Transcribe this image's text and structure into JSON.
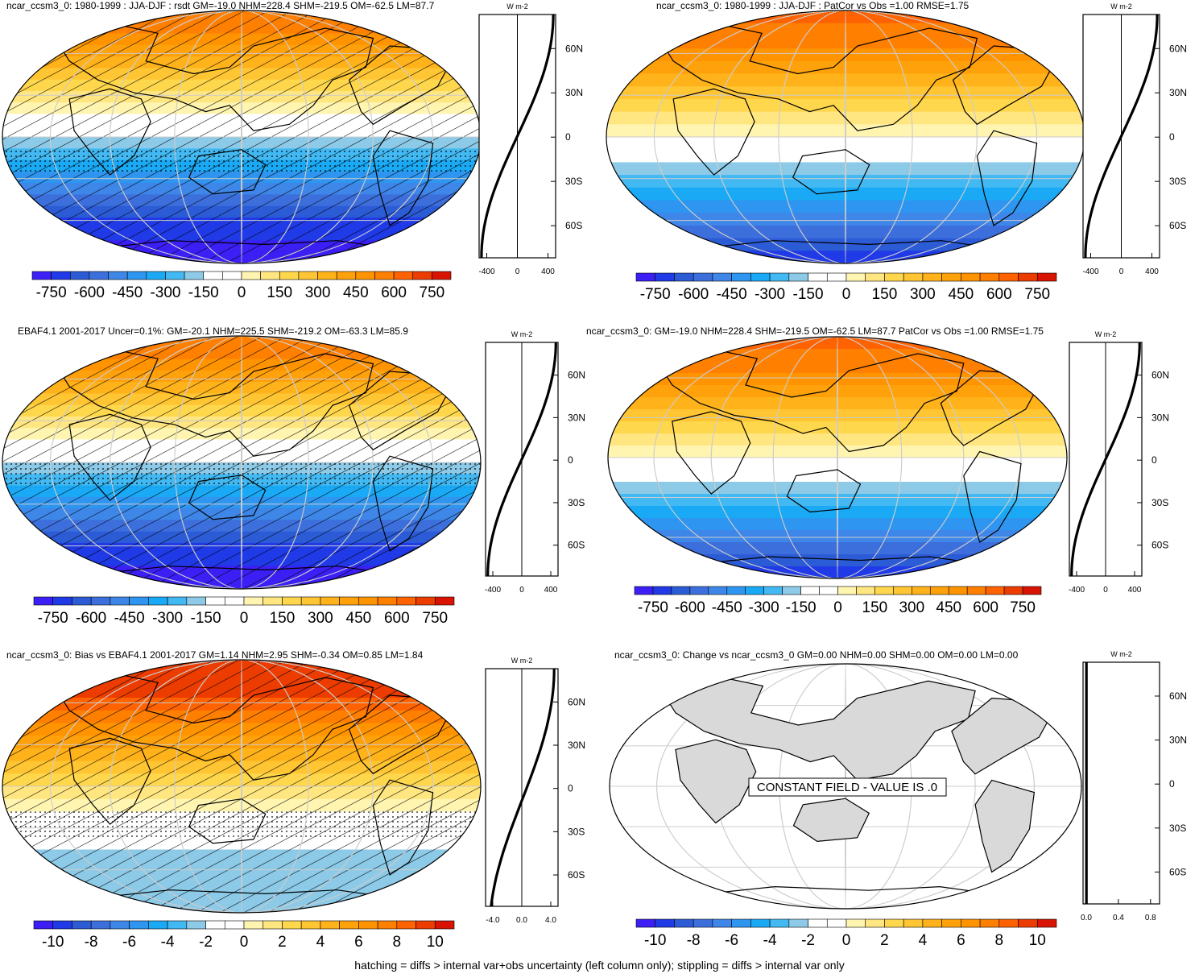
{
  "colors": {
    "scale": [
      "#3b1ff5",
      "#1f3ae6",
      "#2c5bd6",
      "#3d6fdc",
      "#3e86e8",
      "#2e95f0",
      "#1aaaf5",
      "#42b9f2",
      "#8ccae8",
      "#ffffff",
      "#ffffff",
      "#fff5b0",
      "#ffe680",
      "#ffd74d",
      "#ffc533",
      "#ffb21a",
      "#ffa10a",
      "#ff9400",
      "#ff7f00",
      "#ff6200",
      "#ec3c00",
      "#d81400"
    ],
    "land_gray": "#d9d9d9",
    "grid": "#cccccc"
  },
  "panels": [
    {
      "id": "p1",
      "title": "ncar_ccsm3_0: 1980-1999 : JJA-DJF : rsdt GM=-19.0 NHM=228.4 SHM=-219.5 OM=-62.5 LM=87.7",
      "map": "field",
      "hatch": true,
      "stipple": [
        0.55,
        0.65
      ],
      "bands": [
        0,
        0,
        1,
        1,
        2,
        3,
        4,
        5,
        6,
        7,
        8,
        9,
        10,
        11,
        12,
        13,
        14,
        15,
        16,
        17,
        18,
        18
      ],
      "colorbar_labels": [
        "-750",
        "-600",
        "-450",
        "-300",
        "-150",
        "0",
        "150",
        "300",
        "450",
        "600",
        "750"
      ],
      "profile_units": "W m-2",
      "profile_ticks": [
        "-400",
        "0",
        "400"
      ],
      "lat_labels": [
        "60N",
        "30N",
        "0",
        "30S",
        "60S"
      ],
      "profile_type": "sine"
    },
    {
      "id": "p2",
      "title": "ncar_ccsm3_0: 1980-1999 : JJA-DJF : PatCor vs Obs =1.00 RMSE=1.75",
      "map": "field",
      "hatch": false,
      "bands": [
        1,
        2,
        3,
        4,
        5,
        6,
        7,
        8,
        9,
        10,
        11,
        12,
        13,
        14,
        15,
        16,
        17,
        18,
        18,
        19
      ],
      "colorbar_labels": [
        "-750",
        "-600",
        "-450",
        "-300",
        "-150",
        "0",
        "150",
        "300",
        "450",
        "600",
        "750"
      ],
      "profile_units": "W m-2",
      "profile_ticks": [
        "-400",
        "0",
        "400"
      ],
      "lat_labels": [
        "60N",
        "30N",
        "0",
        "30S",
        "60S"
      ],
      "profile_type": "sine"
    },
    {
      "id": "p3",
      "title": "EBAF4.1 2001-2017 Uncer=0.1%: GM=-20.1 NHM=225.5 SHM=-219.2 OM=-63.3 LM=85.9",
      "map": "field",
      "hatch": true,
      "stipple": [
        0.5,
        0.6
      ],
      "bands": [
        0,
        0,
        1,
        1,
        2,
        3,
        4,
        5,
        6,
        7,
        8,
        9,
        10,
        11,
        12,
        13,
        14,
        15,
        16,
        17,
        18,
        18
      ],
      "colorbar_labels": [
        "-750",
        "-600",
        "-450",
        "-300",
        "-150",
        "0",
        "150",
        "300",
        "450",
        "600",
        "750"
      ],
      "profile_units": "W m-2",
      "profile_ticks": [
        "-400",
        "0",
        "400"
      ],
      "lat_labels": [
        "60N",
        "30N",
        "0",
        "30S",
        "60S"
      ],
      "profile_type": "sine"
    },
    {
      "id": "p4",
      "title": "ncar_ccsm3_0: GM=-19.0 NHM=228.4 SHM=-219.5 OM=-62.5 LM=87.7 PatCor vs Obs =1.00 RMSE=1.75",
      "map": "field",
      "hatch": false,
      "bands": [
        1,
        2,
        3,
        4,
        5,
        6,
        7,
        8,
        9,
        10,
        11,
        12,
        13,
        14,
        15,
        16,
        17,
        18,
        18,
        19
      ],
      "colorbar_labels": [
        "-750",
        "-600",
        "-450",
        "-300",
        "-150",
        "0",
        "150",
        "300",
        "450",
        "600",
        "750"
      ],
      "profile_units": "W m-2",
      "profile_ticks": [
        "-400",
        "0",
        "400"
      ],
      "lat_labels": [
        "60N",
        "30N",
        "0",
        "30S",
        "60S"
      ],
      "profile_type": "sine"
    },
    {
      "id": "p5",
      "title": "ncar_ccsm3_0: Bias vs EBAF4.1 2001-2017 GM=1.14 NHM=2.95 SHM=-0.34 OM=0.85 LM=1.84",
      "map": "field",
      "hatch": true,
      "stipple": [
        0.6,
        0.7
      ],
      "bands": [
        8,
        8,
        8,
        8,
        8,
        9,
        10,
        10,
        11,
        12,
        13,
        14,
        15,
        16,
        17,
        18,
        19,
        20,
        20,
        20
      ],
      "colorbar_labels": [
        "-10",
        "-8",
        "-6",
        "-4",
        "-2",
        "0",
        "2",
        "4",
        "6",
        "8",
        "10"
      ],
      "profile_units": "W m-2",
      "profile_ticks": [
        "-4.0",
        "0.0",
        "4.0"
      ],
      "lat_labels": [
        "60N",
        "30N",
        "0",
        "30S",
        "60S"
      ],
      "profile_type": "bias"
    },
    {
      "id": "p6",
      "title": "ncar_ccsm3_0: Change vs ncar_ccsm3_0 GM=0.00 NHM=0.00 SHM=0.00 OM=0.00 LM=0.00",
      "map": "constant",
      "hatch": false,
      "constant_label": "CONSTANT FIELD - VALUE IS .0",
      "colorbar_labels": [
        "-10",
        "-8",
        "-6",
        "-4",
        "-2",
        "0",
        "2",
        "4",
        "6",
        "8",
        "10"
      ],
      "profile_units": "W m-2",
      "profile_ticks": [
        "0.0",
        "0.4",
        "0.8"
      ],
      "lat_labels": [
        "60N",
        "30N",
        "0",
        "30S",
        "60S"
      ],
      "profile_type": "zero"
    }
  ],
  "footer": "hatching = diffs > internal var+obs uncertainty (left column only); stippling = diffs > internal var only"
}
